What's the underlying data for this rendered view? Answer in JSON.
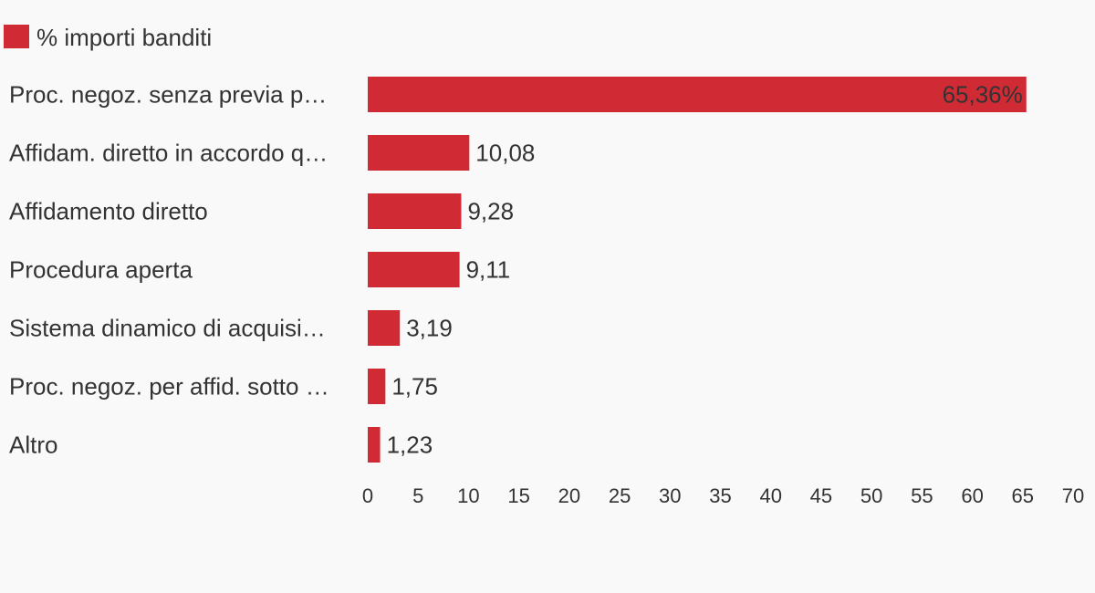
{
  "chart_data": {
    "type": "bar",
    "orientation": "horizontal",
    "categories": [
      "Proc. negoz. senza previa p…",
      "Affidam. diretto in accordo q…",
      "Affidamento diretto",
      "Procedura aperta",
      "Sistema dinamico di acquisi…",
      "Proc. negoz. per affid. sotto …",
      "Altro"
    ],
    "series": [
      {
        "name": "% importi banditi",
        "color": "#d02b35",
        "values": [
          65.36,
          10.08,
          9.28,
          9.11,
          3.19,
          1.75,
          1.23
        ],
        "value_labels": [
          "65,36%",
          "10,08",
          "9,28",
          "9,11",
          "3,19",
          "1,75",
          "1,23"
        ]
      }
    ],
    "xlim": [
      0,
      70
    ],
    "x_ticks": [
      "0",
      "5",
      "10",
      "15",
      "20",
      "25",
      "30",
      "35",
      "40",
      "45",
      "50",
      "55",
      "60",
      "65",
      "70"
    ],
    "legend_position": "top-left",
    "grid": false
  }
}
